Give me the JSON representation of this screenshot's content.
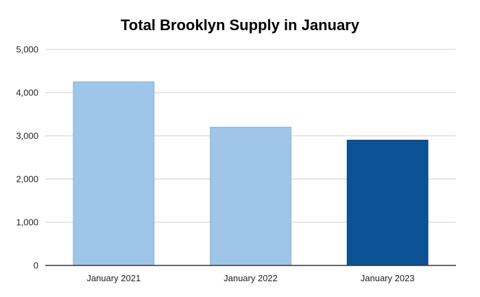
{
  "chart_data": {
    "type": "bar",
    "title": "Total Brooklyn Supply in January",
    "xlabel": "",
    "ylabel": "",
    "categories": [
      "January 2021",
      "January 2022",
      "January 2023"
    ],
    "values": [
      4250,
      3200,
      2900
    ],
    "bar_colors": [
      "#9fc5e8",
      "#9fc5e8",
      "#0b5394"
    ],
    "bar_border_colors": [
      "#86b3de",
      "#86b3de",
      "#073d73"
    ],
    "ylim": [
      0,
      5000
    ],
    "yticks": [
      0,
      1000,
      2000,
      3000,
      4000,
      5000
    ],
    "ytick_labels": [
      "0",
      "1,000",
      "2,000",
      "3,000",
      "4,000",
      "5,000"
    ],
    "grid": true,
    "legend": "none"
  }
}
